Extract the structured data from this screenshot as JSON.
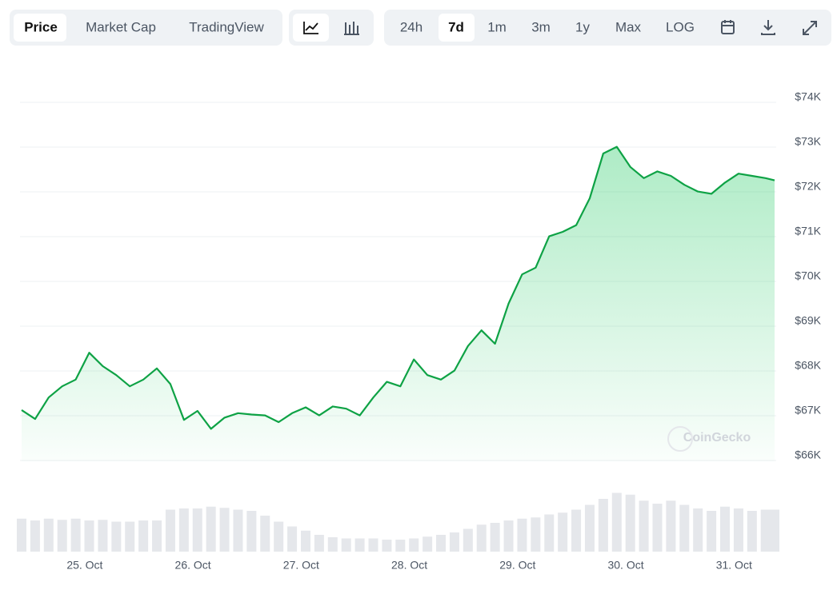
{
  "toolbar": {
    "tabs": [
      "Price",
      "Market Cap",
      "TradingView"
    ],
    "ranges": [
      "24h",
      "7d",
      "1m",
      "3m",
      "1y",
      "Max",
      "LOG"
    ]
  },
  "watermark": "CoinGecko",
  "chart_data": {
    "type": "line",
    "color": "#0ea245",
    "grid": true,
    "x": [
      0,
      3,
      6,
      9,
      12,
      15,
      18,
      21,
      24,
      27,
      30,
      33,
      36,
      39,
      42,
      45,
      48,
      51,
      54,
      57,
      60,
      63,
      66,
      69,
      72,
      75,
      78,
      81,
      84,
      87,
      90,
      93,
      96,
      99,
      102,
      105,
      108,
      111,
      114,
      117,
      120,
      123,
      126,
      129,
      132,
      135,
      138,
      141,
      144,
      147,
      150,
      153,
      156,
      159,
      162,
      165,
      167
    ],
    "xlim": [
      0,
      167
    ],
    "xticks": [
      {
        "value": 14,
        "label": "25. Oct"
      },
      {
        "value": 38,
        "label": "26. Oct"
      },
      {
        "value": 62,
        "label": "27. Oct"
      },
      {
        "value": 86,
        "label": "28. Oct"
      },
      {
        "value": 110,
        "label": "29. Oct"
      },
      {
        "value": 134,
        "label": "30. Oct"
      },
      {
        "value": 158,
        "label": "31. Oct"
      }
    ],
    "ylim": [
      66000,
      74000
    ],
    "yticks": [
      {
        "value": 66000,
        "label": "$66K"
      },
      {
        "value": 67000,
        "label": "$67K"
      },
      {
        "value": 68000,
        "label": "$68K"
      },
      {
        "value": 69000,
        "label": "$69K"
      },
      {
        "value": 70000,
        "label": "$70K"
      },
      {
        "value": 71000,
        "label": "$71K"
      },
      {
        "value": 72000,
        "label": "$72K"
      },
      {
        "value": 73000,
        "label": "$73K"
      },
      {
        "value": 74000,
        "label": "$74K"
      }
    ],
    "series": [
      {
        "name": "Price",
        "values": [
          67020,
          66820,
          67300,
          67550,
          67700,
          68300,
          68000,
          67800,
          67550,
          67700,
          67950,
          67600,
          66800,
          67000,
          66600,
          66850,
          66950,
          66920,
          66900,
          66750,
          66950,
          67080,
          66900,
          67100,
          67050,
          66900,
          67300,
          67650,
          67550,
          68150,
          67800,
          67700,
          67900,
          68450,
          68800,
          68500,
          69400,
          70050,
          70200,
          70900,
          71000,
          71150,
          71750,
          72750,
          72900,
          72450,
          72200,
          72350,
          72250,
          72050,
          71900,
          71850,
          72100,
          72300,
          72250,
          72200,
          72150
        ]
      }
    ],
    "volume": {
      "color": "#e5e7eb",
      "y2lim": [
        0,
        100
      ],
      "values": [
        55,
        52,
        55,
        53,
        55,
        52,
        53,
        50,
        50,
        52,
        52,
        70,
        72,
        72,
        75,
        73,
        70,
        68,
        60,
        50,
        42,
        35,
        28,
        24,
        22,
        22,
        22,
        20,
        20,
        22,
        25,
        28,
        32,
        38,
        45,
        48,
        52,
        55,
        57,
        62,
        65,
        70,
        78,
        88,
        98,
        95,
        85,
        80,
        85,
        78,
        72,
        68,
        75,
        72,
        68,
        70,
        70
      ]
    }
  }
}
